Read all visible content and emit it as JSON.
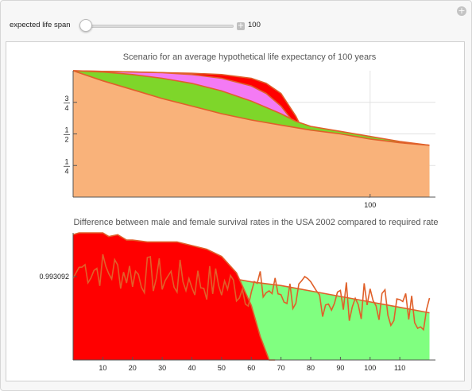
{
  "controls": {
    "slider_label": "expected life span",
    "slider_value": "100",
    "slider_fraction": 0.0,
    "plus_symbol": "+",
    "corner_symbol": "+"
  },
  "chart_data": [
    {
      "type": "area",
      "title": "Scenario for an average hypothetical life expectancy of 100 years",
      "x_range": [
        0,
        122
      ],
      "y_range": [
        0,
        1
      ],
      "yticks": [
        {
          "num": "1",
          "den": "4",
          "value": 0.25
        },
        {
          "num": "1",
          "den": "2",
          "value": 0.5
        },
        {
          "num": "3",
          "den": "4",
          "value": 0.75
        }
      ],
      "xticks": [
        {
          "label": "100",
          "value": 100
        }
      ],
      "grid": true,
      "series": [
        {
          "color": "#f9b27a",
          "x": [
            0,
            10,
            20,
            30,
            40,
            50,
            60,
            70,
            80,
            90,
            100,
            110,
            120
          ],
          "values": [
            1.0,
            0.92,
            0.85,
            0.78,
            0.72,
            0.66,
            0.61,
            0.57,
            0.53,
            0.5,
            0.46,
            0.43,
            0.41
          ]
        },
        {
          "color": "#7ed62a",
          "x": [
            0,
            10,
            20,
            30,
            40,
            50,
            60,
            70,
            75,
            80,
            90,
            100,
            110,
            120
          ],
          "values": [
            1.0,
            0.99,
            0.97,
            0.94,
            0.9,
            0.84,
            0.76,
            0.66,
            0.6,
            0.56,
            0.52,
            0.48,
            0.44,
            0.41
          ]
        },
        {
          "color": "#f47af4",
          "x": [
            0,
            10,
            20,
            30,
            40,
            50,
            60,
            65,
            70,
            75,
            80
          ],
          "values": [
            1.0,
            0.995,
            0.99,
            0.985,
            0.97,
            0.94,
            0.88,
            0.82,
            0.72,
            0.57,
            0.41
          ]
        },
        {
          "color": "#ff0000",
          "x": [
            0,
            10,
            20,
            30,
            40,
            50,
            60,
            65,
            70,
            75,
            80,
            85,
            90,
            95,
            100
          ],
          "values": [
            1.0,
            0.995,
            0.99,
            0.985,
            0.98,
            0.97,
            0.94,
            0.9,
            0.82,
            0.64,
            0.4,
            0.17,
            0.05,
            0.01,
            0.0
          ]
        },
        {
          "color": "#ffff80",
          "x": [
            80,
            90,
            100,
            110,
            120
          ],
          "values": [
            0.4,
            0.4,
            0.42,
            0.42,
            0.41
          ]
        }
      ]
    },
    {
      "type": "area",
      "title": "Difference between male and female survival rates in the USA 2002 compared to required rate",
      "x_range": [
        0,
        122
      ],
      "y_range": [
        0.9885,
        0.9955
      ],
      "yticks": [
        {
          "label": "0.993092",
          "value": 0.993092
        }
      ],
      "xticks": [
        {
          "label": "10",
          "value": 10
        },
        {
          "label": "20",
          "value": 20
        },
        {
          "label": "30",
          "value": 30
        },
        {
          "label": "40",
          "value": 40
        },
        {
          "label": "50",
          "value": 50
        },
        {
          "label": "60",
          "value": 60
        },
        {
          "label": "70",
          "value": 70
        },
        {
          "label": "80",
          "value": 80
        },
        {
          "label": "90",
          "value": 90
        },
        {
          "label": "100",
          "value": 100
        },
        {
          "label": "110",
          "value": 110
        }
      ],
      "grid": false,
      "series": [
        {
          "color": "#80ff80",
          "x": [
            0,
            10,
            20,
            30,
            40,
            50,
            60,
            70,
            80,
            90,
            100,
            110,
            120
          ],
          "values": [
            0.9942,
            0.9939,
            0.9937,
            0.9935,
            0.9933,
            0.9931,
            0.9928,
            0.9926,
            0.9923,
            0.992,
            0.9917,
            0.9914,
            0.9911
          ]
        },
        {
          "color": "#ff0000",
          "x": [
            0,
            2,
            5,
            10,
            12,
            15,
            18,
            20,
            25,
            30,
            35,
            40,
            45,
            50,
            55,
            60,
            63,
            66,
            68
          ],
          "values": [
            0.9954,
            0.9955,
            0.9955,
            0.9955,
            0.9953,
            0.9954,
            0.9951,
            0.9951,
            0.995,
            0.995,
            0.995,
            0.9948,
            0.9946,
            0.9942,
            0.9933,
            0.9915,
            0.9898,
            0.9885,
            0.9885
          ]
        }
      ]
    }
  ]
}
